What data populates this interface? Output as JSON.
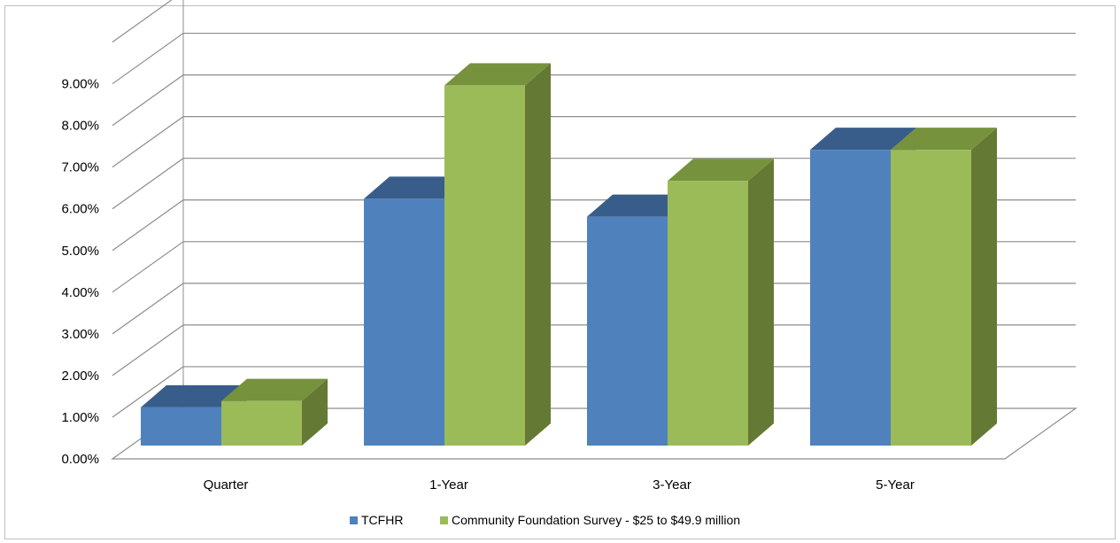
{
  "chart_data": {
    "type": "bar",
    "style": "3d-clustered-column",
    "categories": [
      "Quarter",
      "1-Year",
      "3-Year",
      "5-Year"
    ],
    "series": [
      {
        "name": "TCFHR",
        "values": [
          0.0096,
          0.062,
          0.0575,
          0.0743
        ],
        "color": "#4F81BD",
        "top_color": "#385D8A",
        "side_color": "#385D8A"
      },
      {
        "name": "Community Foundation Survey - $25 to $49.9 million",
        "values": [
          0.0112,
          0.0905,
          0.0665,
          0.0743
        ],
        "color": "#9BBB59",
        "top_color": "#76923C",
        "side_color": "#647A34"
      }
    ],
    "y_ticks": [
      "0.00%",
      "1.00%",
      "2.00%",
      "3.00%",
      "4.00%",
      "5.00%",
      "6.00%",
      "7.00%",
      "8.00%",
      "9.00%"
    ],
    "ylim": [
      0,
      0.1
    ],
    "grid": true,
    "legend_position": "bottom"
  }
}
